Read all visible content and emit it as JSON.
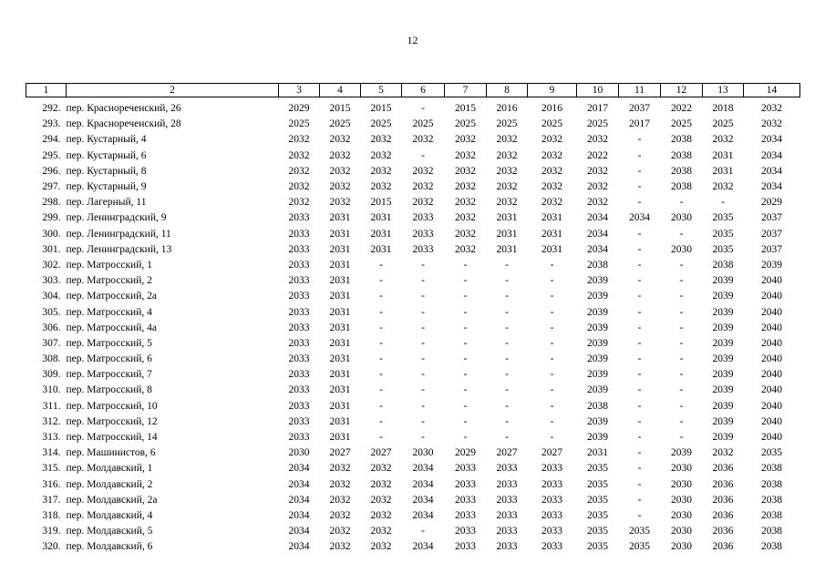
{
  "page_number": "12",
  "table": {
    "header": [
      "1",
      "2",
      "3",
      "4",
      "5",
      "6",
      "7",
      "8",
      "9",
      "10",
      "11",
      "12",
      "13",
      "14"
    ],
    "rows": [
      [
        "292.",
        "пер. Краснореченский, 26",
        "2029",
        "2015",
        "2015",
        "-",
        "2015",
        "2016",
        "2016",
        "2017",
        "2037",
        "2022",
        "2018",
        "2032"
      ],
      [
        "293.",
        "пер. Краснореченский, 28",
        "2025",
        "2025",
        "2025",
        "2025",
        "2025",
        "2025",
        "2025",
        "2025",
        "2017",
        "2025",
        "2025",
        "2032"
      ],
      [
        "294.",
        "пер. Кустарный, 4",
        "2032",
        "2032",
        "2032",
        "2032",
        "2032",
        "2032",
        "2032",
        "2032",
        "-",
        "2038",
        "2032",
        "2034"
      ],
      [
        "295.",
        "пер. Кустарный, 6",
        "2032",
        "2032",
        "2032",
        "-",
        "2032",
        "2032",
        "2032",
        "2022",
        "-",
        "2038",
        "2031",
        "2034"
      ],
      [
        "296.",
        "пер. Кустарный, 8",
        "2032",
        "2032",
        "2032",
        "2032",
        "2032",
        "2032",
        "2032",
        "2032",
        "-",
        "2038",
        "2031",
        "2034"
      ],
      [
        "297.",
        "пер. Кустарный, 9",
        "2032",
        "2032",
        "2032",
        "2032",
        "2032",
        "2032",
        "2032",
        "2032",
        "-",
        "2038",
        "2032",
        "2034"
      ],
      [
        "298.",
        "пер. Лагерный, 11",
        "2032",
        "2032",
        "2015",
        "2032",
        "2032",
        "2032",
        "2032",
        "2032",
        "-",
        "-",
        "-",
        "2029"
      ],
      [
        "299.",
        "пер. Ленинградский, 9",
        "2033",
        "2031",
        "2031",
        "2033",
        "2032",
        "2031",
        "2031",
        "2034",
        "2034",
        "2030",
        "2035",
        "2037"
      ],
      [
        "300.",
        "пер. Ленинградский, 11",
        "2033",
        "2031",
        "2031",
        "2033",
        "2032",
        "2031",
        "2031",
        "2034",
        "-",
        "-",
        "2035",
        "2037"
      ],
      [
        "301.",
        "пер. Ленинградский, 13",
        "2033",
        "2031",
        "2031",
        "2033",
        "2032",
        "2031",
        "2031",
        "2034",
        "-",
        "2030",
        "2035",
        "2037"
      ],
      [
        "302.",
        "пер. Матросский, 1",
        "2033",
        "2031",
        "-",
        "-",
        "-",
        "-",
        "-",
        "2038",
        "-",
        "-",
        "2038",
        "2039"
      ],
      [
        "303.",
        "пер. Матросский, 2",
        "2033",
        "2031",
        "-",
        "-",
        "-",
        "-",
        "-",
        "2039",
        "-",
        "-",
        "2039",
        "2040"
      ],
      [
        "304.",
        "пер. Матросский, 2а",
        "2033",
        "2031",
        "-",
        "-",
        "-",
        "-",
        "-",
        "2039",
        "-",
        "-",
        "2039",
        "2040"
      ],
      [
        "305.",
        "пер. Матросский, 4",
        "2033",
        "2031",
        "-",
        "-",
        "-",
        "-",
        "-",
        "2039",
        "-",
        "-",
        "2039",
        "2040"
      ],
      [
        "306.",
        "пер. Матросский, 4а",
        "2033",
        "2031",
        "-",
        "-",
        "-",
        "-",
        "-",
        "2039",
        "-",
        "-",
        "2039",
        "2040"
      ],
      [
        "307.",
        "пер. Матросский, 5",
        "2033",
        "2031",
        "-",
        "-",
        "-",
        "-",
        "-",
        "2039",
        "-",
        "-",
        "2039",
        "2040"
      ],
      [
        "308.",
        "пер. Матросский, 6",
        "2033",
        "2031",
        "-",
        "-",
        "-",
        "-",
        "-",
        "2039",
        "-",
        "-",
        "2039",
        "2040"
      ],
      [
        "309.",
        "пер. Матросский, 7",
        "2033",
        "2031",
        "-",
        "-",
        "-",
        "-",
        "-",
        "2039",
        "-",
        "-",
        "2039",
        "2040"
      ],
      [
        "310.",
        "пер. Матросский, 8",
        "2033",
        "2031",
        "-",
        "-",
        "-",
        "-",
        "-",
        "2039",
        "-",
        "-",
        "2039",
        "2040"
      ],
      [
        "311.",
        "пер. Матросский, 10",
        "2033",
        "2031",
        "-",
        "-",
        "-",
        "-",
        "-",
        "2038",
        "-",
        "-",
        "2039",
        "2040"
      ],
      [
        "312.",
        "пер. Матросский, 12",
        "2033",
        "2031",
        "-",
        "-",
        "-",
        "-",
        "-",
        "2039",
        "-",
        "-",
        "2039",
        "2040"
      ],
      [
        "313.",
        "пер. Матросский, 14",
        "2033",
        "2031",
        "-",
        "-",
        "-",
        "-",
        "-",
        "2039",
        "-",
        "-",
        "2039",
        "2040"
      ],
      [
        "314.",
        "пер. Машинистов, 6",
        "2030",
        "2027",
        "2027",
        "2030",
        "2029",
        "2027",
        "2027",
        "2031",
        "-",
        "2039",
        "2032",
        "2035"
      ],
      [
        "315.",
        "пер. Молдавский, 1",
        "2034",
        "2032",
        "2032",
        "2034",
        "2033",
        "2033",
        "2033",
        "2035",
        "-",
        "2030",
        "2036",
        "2038"
      ],
      [
        "316.",
        "пер. Молдавский, 2",
        "2034",
        "2032",
        "2032",
        "2034",
        "2033",
        "2033",
        "2033",
        "2035",
        "-",
        "2030",
        "2036",
        "2038"
      ],
      [
        "317.",
        "пер. Молдавский, 2а",
        "2034",
        "2032",
        "2032",
        "2034",
        "2033",
        "2033",
        "2033",
        "2035",
        "-",
        "2030",
        "2036",
        "2038"
      ],
      [
        "318.",
        "пер. Молдавский, 4",
        "2034",
        "2032",
        "2032",
        "2034",
        "2033",
        "2033",
        "2033",
        "2035",
        "-",
        "2030",
        "2036",
        "2038"
      ],
      [
        "319.",
        "пер. Молдавский, 5",
        "2034",
        "2032",
        "2032",
        "-",
        "2033",
        "2033",
        "2033",
        "2035",
        "2035",
        "2030",
        "2036",
        "2038"
      ],
      [
        "320.",
        "пер. Молдавский, 6",
        "2034",
        "2032",
        "2032",
        "2034",
        "2033",
        "2033",
        "2033",
        "2035",
        "2035",
        "2030",
        "2036",
        "2038"
      ]
    ]
  }
}
